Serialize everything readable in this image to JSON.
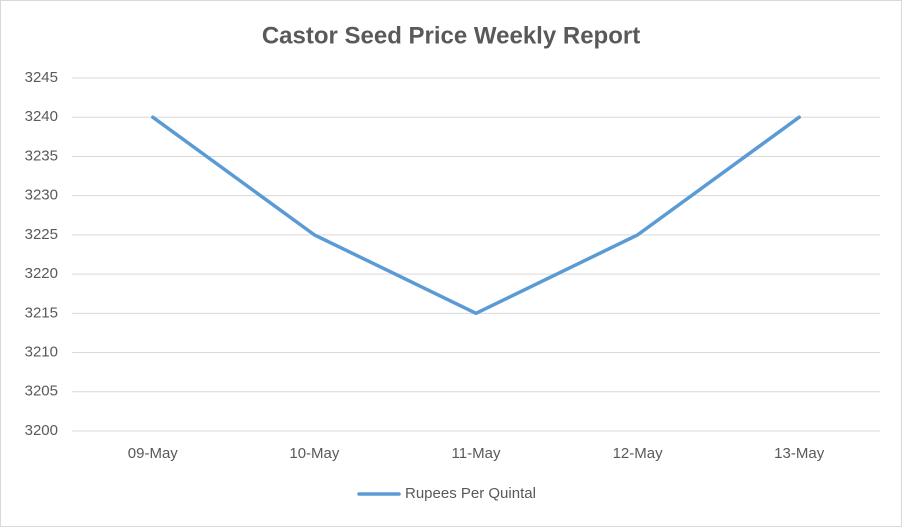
{
  "chart_data": {
    "type": "line",
    "title": "Castor Seed Price Weekly Report",
    "categories": [
      "09-May",
      "10-May",
      "11-May",
      "12-May",
      "13-May"
    ],
    "series": [
      {
        "name": "Rupees Per Quintal",
        "color": "#5b9bd5",
        "values": [
          3240,
          3225,
          3215,
          3225,
          3240
        ]
      }
    ],
    "ylim": [
      3200,
      3245
    ],
    "yticks": [
      3200,
      3205,
      3210,
      3215,
      3220,
      3225,
      3230,
      3235,
      3240,
      3245
    ],
    "grid": true,
    "legend": "bottom"
  }
}
